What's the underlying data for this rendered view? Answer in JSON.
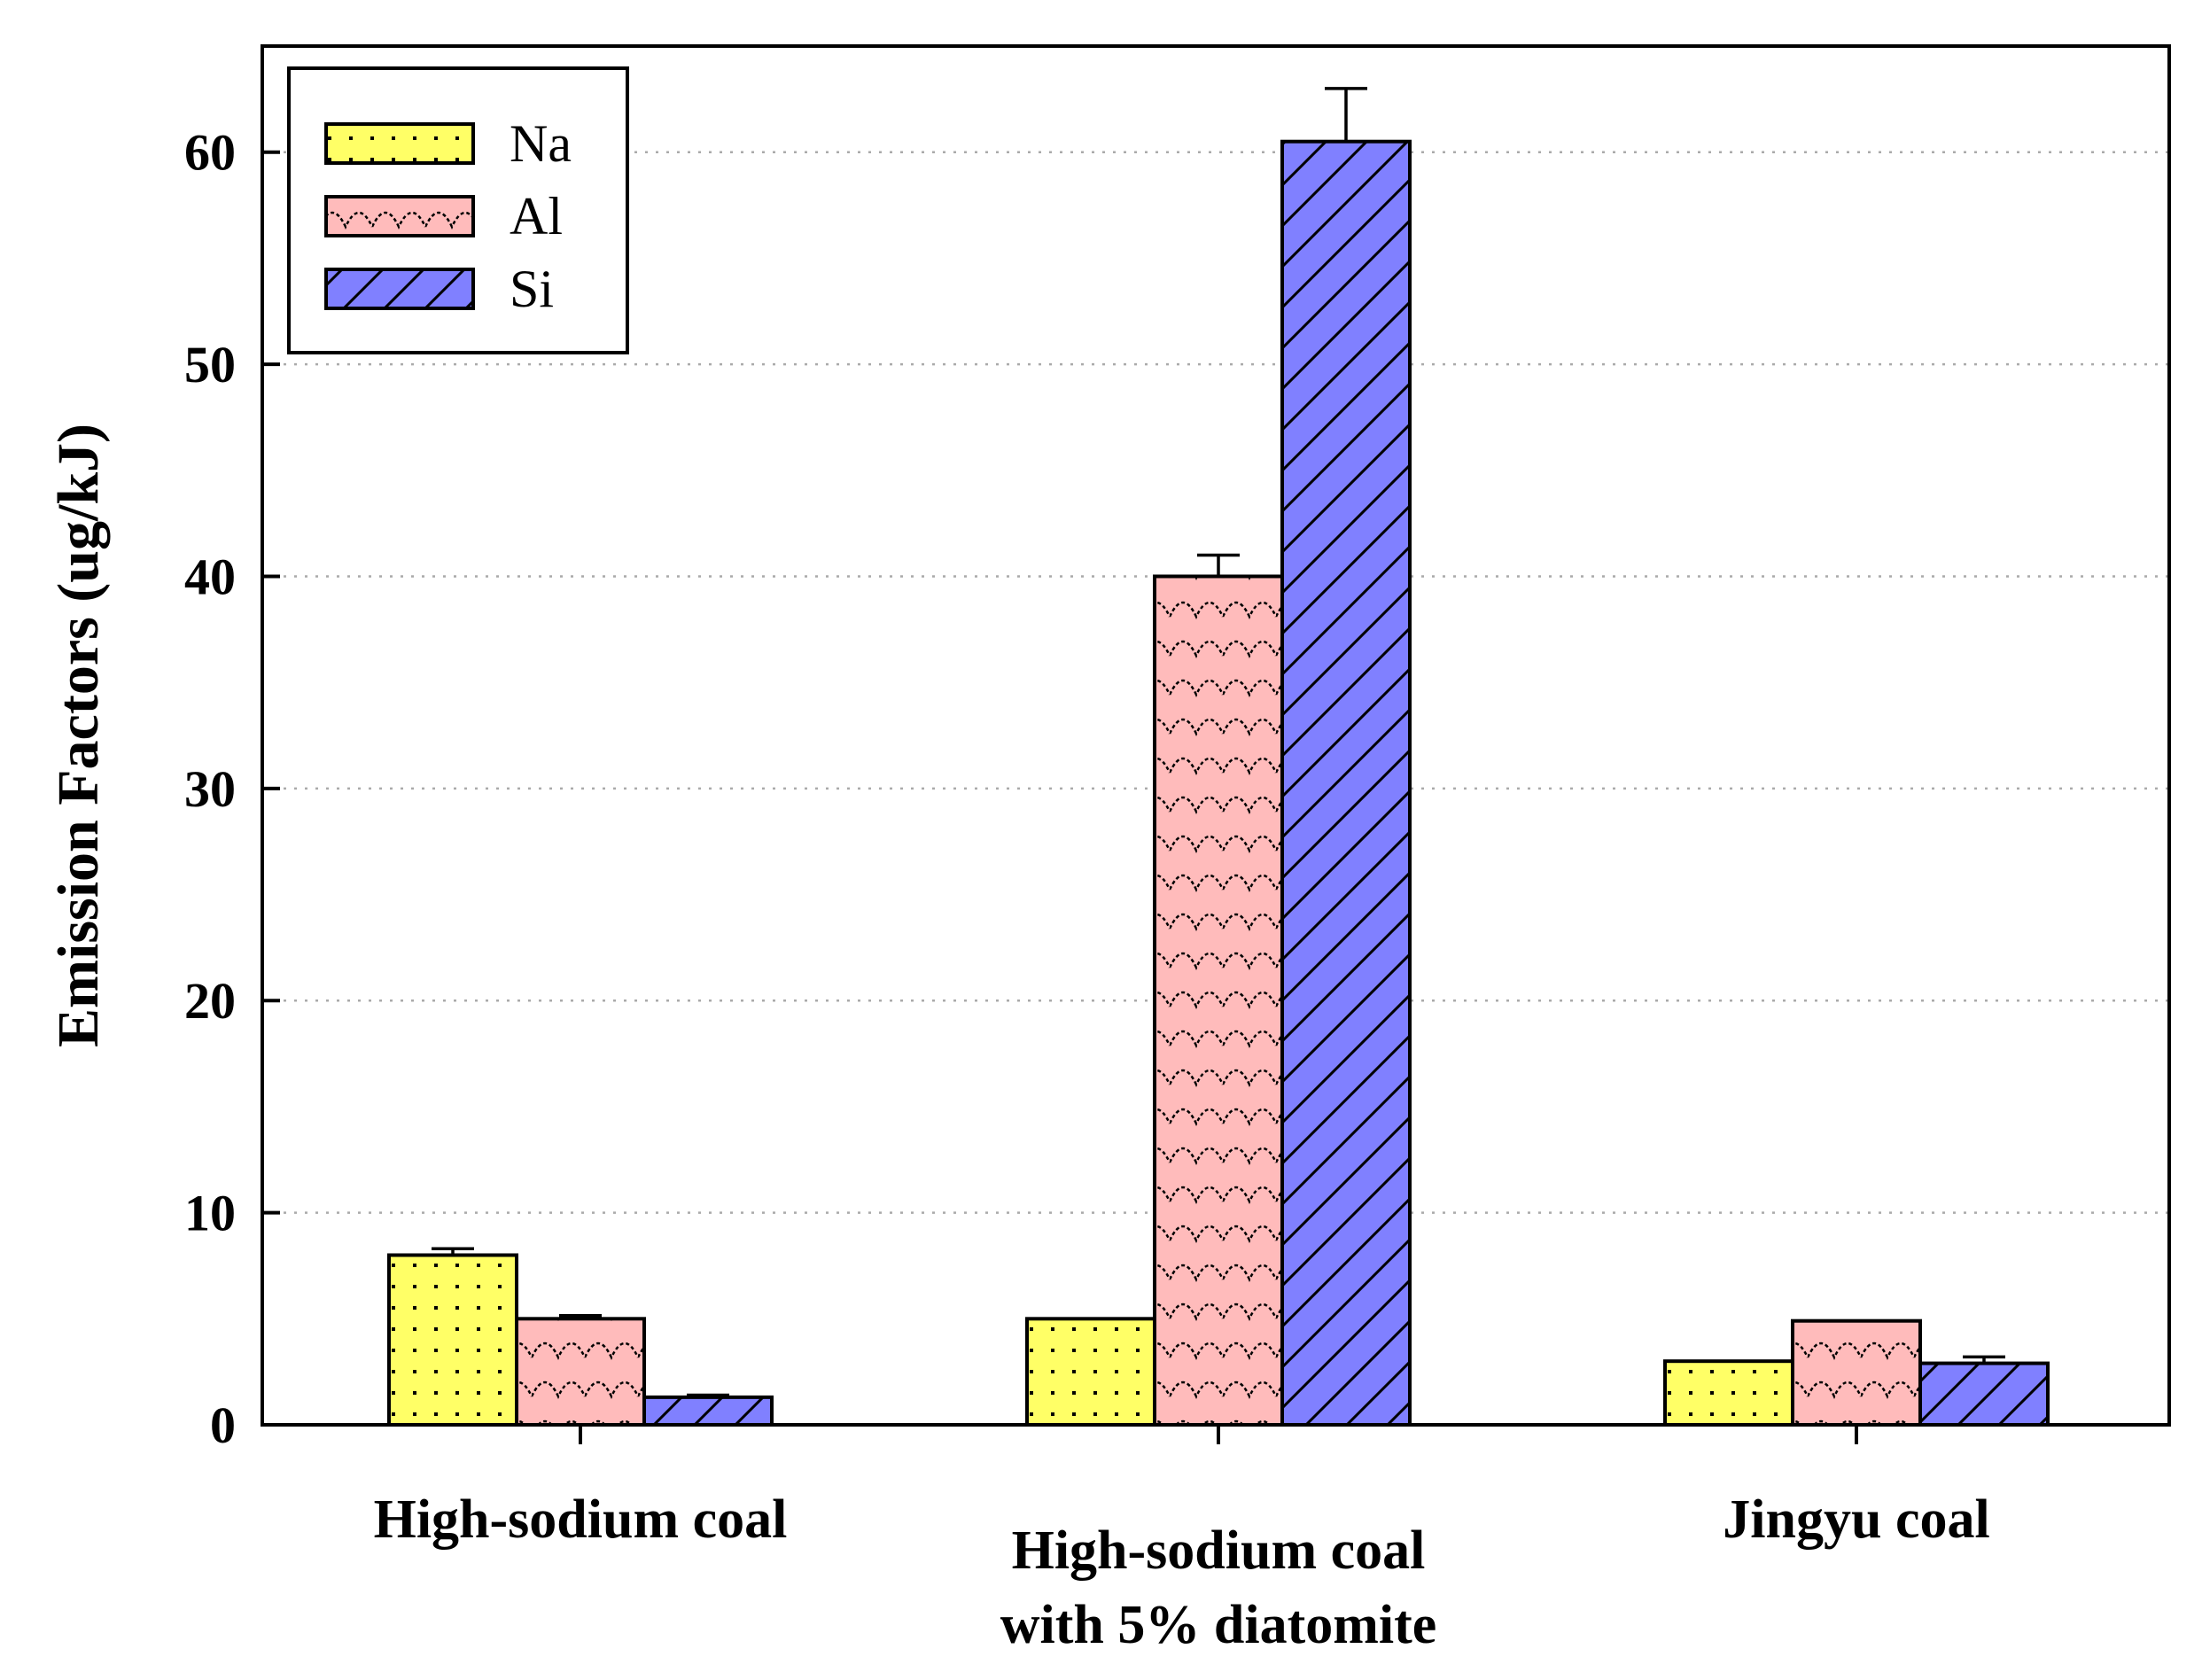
{
  "chart_data": {
    "type": "bar",
    "title": "",
    "xlabel": "",
    "ylabel": "Emission Factors  (ug/kJ)",
    "ylim": [
      0,
      65
    ],
    "yticks": [
      0,
      10,
      20,
      30,
      40,
      50,
      60
    ],
    "grid": "horizontal-dotted",
    "legend_position": "top-left",
    "categories": [
      [
        "High-sodium coal"
      ],
      [
        "High-sodium coal",
        "with 5% diatomite"
      ],
      [
        "Jingyu coal"
      ]
    ],
    "series": [
      {
        "name": "Na",
        "values": [
          8.0,
          5.0,
          3.0
        ],
        "errors": [
          0.3,
          0.0,
          0.0
        ],
        "color": "#ffff66",
        "pattern": "dots"
      },
      {
        "name": "Al",
        "values": [
          5.0,
          40.0,
          4.9
        ],
        "errors": [
          0.15,
          1.0,
          0.0
        ],
        "color": "#ffbbbb",
        "pattern": "waves"
      },
      {
        "name": "Si",
        "values": [
          1.3,
          60.5,
          2.9
        ],
        "errors": [
          0.1,
          2.5,
          0.3
        ],
        "color": "#8080ff",
        "pattern": "diagonal"
      }
    ]
  }
}
